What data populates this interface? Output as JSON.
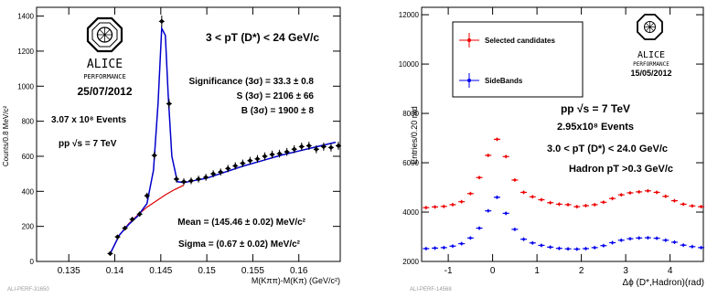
{
  "left": {
    "ylabel": "Counts/0.8 MeV/c²",
    "xlabel": "M(Kππ)-M(Kπ) (GeV/c²)",
    "logo_text": "ALICE",
    "logo_sub": "PERFORMANCE",
    "date": "25/07/2012",
    "range_label": "3 < pT (D*) < 24 GeV/c",
    "significance": "Significance (3σ) = 33.3 ± 0.8",
    "s_value": "S (3σ) = 2106 ± 66",
    "b_value": "B (3σ) = 1900 ± 8",
    "events": "3.07 x 10⁸ Events",
    "energy": "pp √s = 7 TeV",
    "mean": "Mean = (145.46 ± 0.02) MeV/c²",
    "sigma": "Sigma = (0.67 ± 0.02) MeV/c²",
    "footer_id": "ALI-PERF-31650",
    "x_ticks": [
      "0.135",
      "0.14",
      "0.145",
      "0.15",
      "0.155",
      "0.16"
    ],
    "y_ticks": [
      "0",
      "200",
      "400",
      "600",
      "800",
      "1000",
      "1200",
      "1400"
    ],
    "colors": {
      "data": "#000000",
      "fit": "#0000cc",
      "background": "#dd0000"
    }
  },
  "right": {
    "ylabel": "Entries/0.20 rad",
    "xlabel": "Δϕ (D*,Hadron)(rad)",
    "legend": [
      "Selected candidates",
      "SideBands"
    ],
    "logo_text": "ALICE",
    "logo_sub": "PERFORMANCE",
    "date": "15/05/2012",
    "energy": "pp √s = 7 TeV",
    "events": "2.95x10⁸ Events",
    "range_label": "3.0 < pT (D*) < 24.0 GeV/c",
    "hadron_cut": "Hadron pT >0.3 GeV/c",
    "footer_id": "ALI-PERF-14568",
    "x_ticks": [
      "-1",
      "0",
      "1",
      "2",
      "3",
      "4"
    ],
    "y_ticks": [
      "2000",
      "4000",
      "6000",
      "8000",
      "10000",
      "12000"
    ],
    "colors": {
      "selected": "#ee0000",
      "sidebands": "#0000ee"
    }
  },
  "chart_data": [
    {
      "type": "scatter",
      "title": "",
      "xlabel": "M(Kππ)-M(Kπ) (GeV/c²)",
      "ylabel": "Counts/0.8 MeV/c²",
      "xlim": [
        0.1315,
        0.1645
      ],
      "ylim": [
        0,
        1450
      ],
      "grid": false,
      "series": [
        {
          "x": [
            0.1395,
            0.1403,
            0.1411,
            0.1419,
            0.1427,
            0.1435,
            0.1443,
            0.1451,
            0.1459,
            0.1467,
            0.1475,
            0.1483,
            0.1491,
            0.1499,
            0.1507,
            0.1515,
            0.1523,
            0.1531,
            0.1539,
            0.1547,
            0.1555,
            0.1563,
            0.1571,
            0.1579,
            0.1587,
            0.1595,
            0.1603,
            0.1611,
            0.1619,
            0.1627,
            0.1635,
            0.1643
          ],
          "y": [
            45,
            140,
            190,
            240,
            270,
            375,
            605,
            1370,
            900,
            470,
            455,
            460,
            470,
            480,
            500,
            510,
            530,
            545,
            560,
            575,
            585,
            600,
            610,
            615,
            625,
            640,
            655,
            660,
            640,
            655,
            650,
            660
          ]
        },
        {
          "name": "",
          "x": [
            0.1395,
            0.1405,
            0.1415,
            0.1425,
            0.1435,
            0.1442,
            0.1447,
            0.1451,
            0.1455,
            0.1458,
            0.1462,
            0.1468,
            0.1475,
            0.1485,
            0.15,
            0.152,
            0.154,
            0.156,
            0.158,
            0.16,
            0.162,
            0.164
          ],
          "y": [
            45,
            150,
            210,
            260,
            330,
            520,
            900,
            1330,
            1290,
            950,
            600,
            455,
            450,
            460,
            475,
            510,
            545,
            575,
            605,
            630,
            655,
            680
          ]
        },
        {
          "name": "",
          "x": [
            0.1395,
            0.1405,
            0.1415,
            0.1425,
            0.1435,
            0.1445,
            0.1455,
            0.1465,
            0.1475
          ],
          "y": [
            45,
            150,
            215,
            265,
            310,
            345,
            380,
            410,
            435
          ]
        }
      ]
    },
    {
      "type": "scatter",
      "title": "",
      "xlabel": "Δϕ (D*,Hadron)(rad)",
      "ylabel": "Entries/0.20 rad",
      "xlim": [
        -1.6,
        4.75
      ],
      "ylim": [
        2000,
        12300
      ],
      "grid": false,
      "legend": "top-left",
      "series": [
        {
          "name": "Selected candidates",
          "x": [
            -1.5,
            -1.3,
            -1.1,
            -0.9,
            -0.7,
            -0.5,
            -0.3,
            -0.1,
            0.1,
            0.3,
            0.5,
            0.7,
            0.9,
            1.1,
            1.3,
            1.5,
            1.7,
            1.9,
            2.1,
            2.3,
            2.5,
            2.7,
            2.9,
            3.1,
            3.3,
            3.5,
            3.7,
            3.9,
            4.1,
            4.3,
            4.5,
            4.7
          ],
          "y": [
            4180,
            4210,
            4230,
            4300,
            4420,
            4750,
            5400,
            6300,
            6950,
            6250,
            5300,
            4800,
            4620,
            4500,
            4380,
            4320,
            4300,
            4220,
            4260,
            4300,
            4400,
            4550,
            4700,
            4780,
            4820,
            4860,
            4800,
            4640,
            4460,
            4320,
            4250,
            4220
          ]
        },
        {
          "name": "SideBands",
          "x": [
            -1.5,
            -1.3,
            -1.1,
            -0.9,
            -0.7,
            -0.5,
            -0.3,
            -0.1,
            0.1,
            0.3,
            0.5,
            0.7,
            0.9,
            1.1,
            1.3,
            1.5,
            1.7,
            1.9,
            2.1,
            2.3,
            2.5,
            2.7,
            2.9,
            3.1,
            3.3,
            3.5,
            3.7,
            3.9,
            4.1,
            4.3,
            4.5,
            4.7
          ],
          "y": [
            2520,
            2540,
            2560,
            2620,
            2720,
            2950,
            3350,
            4050,
            4600,
            3950,
            3300,
            2900,
            2750,
            2650,
            2580,
            2530,
            2510,
            2500,
            2520,
            2560,
            2640,
            2760,
            2860,
            2920,
            2950,
            2960,
            2940,
            2860,
            2780,
            2660,
            2600,
            2560
          ]
        }
      ]
    }
  ]
}
